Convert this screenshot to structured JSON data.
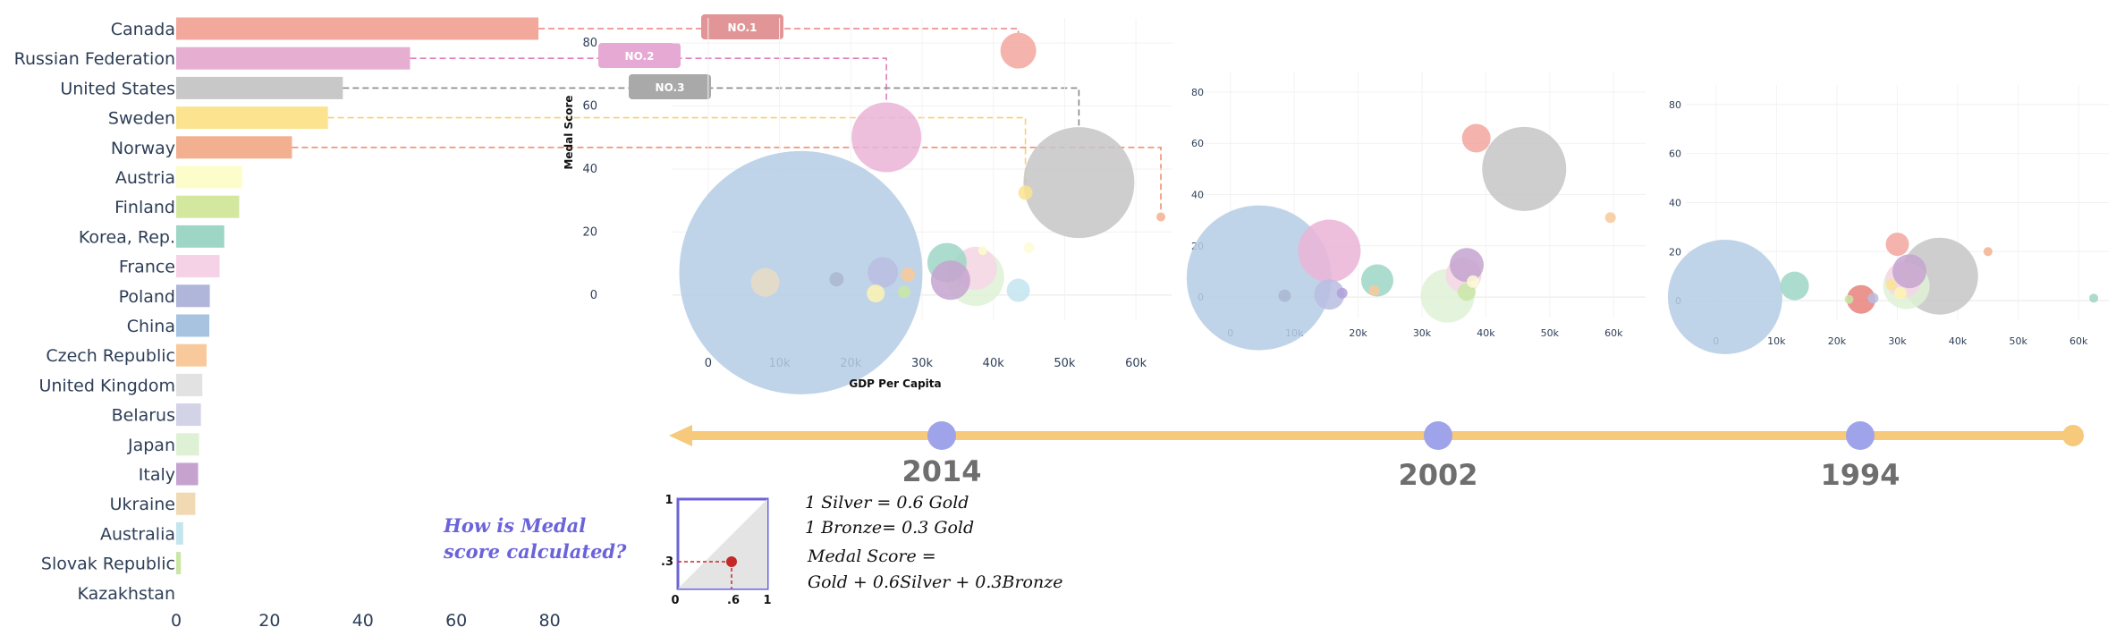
{
  "chart_data": [
    {
      "type": "bar",
      "orientation": "horizontal",
      "categories": [
        "Canada",
        "Russian Federation",
        "United States",
        "Sweden",
        "Norway",
        "Austria",
        "Finland",
        "Korea, Rep.",
        "France",
        "Poland",
        "China",
        "Czech Republic",
        "United Kingdom",
        "Belarus",
        "Japan",
        "Italy",
        "Ukraine",
        "Australia",
        "Slovak Republic",
        "Kazakhstan"
      ],
      "values": [
        77.6,
        50.1,
        35.7,
        32.5,
        24.8,
        14.1,
        13.5,
        10.3,
        9.3,
        7.2,
        7.1,
        6.5,
        5.6,
        5.3,
        4.9,
        4.7,
        4.1,
        1.5,
        1.0,
        0.3
      ],
      "colors": [
        "#f3a89c",
        "#e6afd2",
        "#c8c8c8",
        "#fbe38f",
        "#f2b091",
        "#fdfdcb",
        "#d3e79f",
        "#9ed6c6",
        "#f6d2e7",
        "#b0b5da",
        "#a7c3e0",
        "#f8c99a",
        "#e2e2e2",
        "#d3d3e8",
        "#dff1d5",
        "#c6a3cf",
        "#f0d9b3",
        "#c3e5ee",
        "#c9e6a5",
        "#ffffff"
      ],
      "xticks": [
        "0",
        "20",
        "40",
        "60",
        "80"
      ],
      "xlim": [
        0,
        90
      ],
      "badges": [
        "NO.1",
        "NO.2",
        "NO.3"
      ],
      "badge_colors": [
        "#e29596",
        "#e6a9d4",
        "#a9a9a9"
      ],
      "leader_colors": [
        "#f07f80",
        "#e07fba",
        "#888888",
        "#f7d070",
        "#f0906c"
      ]
    },
    {
      "type": "scatter",
      "year": "2014",
      "xlabel": "GDP Per Capita",
      "ylabel": "Medal Score",
      "xlim": [
        -5000,
        65000
      ],
      "ylim": [
        -8,
        88
      ],
      "xticks": [
        "0",
        "10k",
        "20k",
        "30k",
        "40k",
        "50k",
        "60k"
      ],
      "yticks": [
        "0",
        "20",
        "40",
        "60",
        "80"
      ],
      "points": [
        {
          "x": 43500,
          "y": 77.6,
          "size": 20,
          "color": "#f2a69d"
        },
        {
          "x": 25000,
          "y": 50.1,
          "size": 39,
          "color": "#eab4d7"
        },
        {
          "x": 52000,
          "y": 35.7,
          "size": 62,
          "color": "#c6c6c6"
        },
        {
          "x": 44500,
          "y": 32.5,
          "size": 8,
          "color": "#fbe38f"
        },
        {
          "x": 63500,
          "y": 24.8,
          "size": 5,
          "color": "#f2b091"
        },
        {
          "x": 13000,
          "y": 7.1,
          "size": 136,
          "color": "#b5cde5"
        },
        {
          "x": 8000,
          "y": 4.0,
          "size": 16,
          "color": "#e9dcc4"
        },
        {
          "x": 18000,
          "y": 5.0,
          "size": 8,
          "color": "#aab6d0"
        },
        {
          "x": 24500,
          "y": 7.2,
          "size": 17,
          "color": "#b9bde0"
        },
        {
          "x": 28000,
          "y": 6.5,
          "size": 8,
          "color": "#f8c99a"
        },
        {
          "x": 33500,
          "y": 10.3,
          "size": 22,
          "color": "#9ed6c6"
        },
        {
          "x": 34000,
          "y": 4.7,
          "size": 22,
          "color": "#c6a3cf"
        },
        {
          "x": 37500,
          "y": 8.5,
          "size": 24,
          "color": "#f7d6e8"
        },
        {
          "x": 37500,
          "y": 5.6,
          "size": 32,
          "color": "#dff1d5"
        },
        {
          "x": 38500,
          "y": 14.1,
          "size": 5,
          "color": "#fdfdcb"
        },
        {
          "x": 43500,
          "y": 1.5,
          "size": 13,
          "color": "#c3e5ee"
        },
        {
          "x": 45000,
          "y": 15.0,
          "size": 6,
          "color": "#fdfcd6"
        },
        {
          "x": 27500,
          "y": 1.0,
          "size": 7,
          "color": "#c9e6a5"
        },
        {
          "x": 23500,
          "y": 0.5,
          "size": 10,
          "color": "#fdf3b3"
        }
      ]
    },
    {
      "type": "scatter",
      "year": "2002",
      "xlim": [
        -5000,
        65000
      ],
      "ylim": [
        -8,
        88
      ],
      "xticks": [
        "0",
        "10k",
        "20k",
        "30k",
        "40k",
        "50k",
        "60k"
      ],
      "yticks": [
        "0",
        "20",
        "40",
        "60",
        "80"
      ],
      "points": [
        {
          "x": 38500,
          "y": 62,
          "size": 16,
          "color": "#f2a69d"
        },
        {
          "x": 46000,
          "y": 50,
          "size": 47,
          "color": "#c6c6c6"
        },
        {
          "x": 15500,
          "y": 18,
          "size": 35,
          "color": "#eab4d7"
        },
        {
          "x": 59500,
          "y": 31,
          "size": 6,
          "color": "#f8c99a"
        },
        {
          "x": 4500,
          "y": 7.5,
          "size": 81,
          "color": "#b5cde5"
        },
        {
          "x": 8500,
          "y": 0.5,
          "size": 7,
          "color": "#aab6d0"
        },
        {
          "x": 15500,
          "y": 1.0,
          "size": 17,
          "color": "#b9bde0"
        },
        {
          "x": 17500,
          "y": 1.5,
          "size": 6,
          "color": "#b0a0d8"
        },
        {
          "x": 22500,
          "y": 2.5,
          "size": 6,
          "color": "#f8c99a"
        },
        {
          "x": 23000,
          "y": 6.5,
          "size": 18,
          "color": "#9ed6c6"
        },
        {
          "x": 37000,
          "y": 12.5,
          "size": 19,
          "color": "#c6a3cf"
        },
        {
          "x": 36500,
          "y": 8.5,
          "size": 20,
          "color": "#f7d6e8"
        },
        {
          "x": 34000,
          "y": 0.5,
          "size": 30,
          "color": "#dff1d5"
        },
        {
          "x": 37000,
          "y": 2.0,
          "size": 10,
          "color": "#c9e6a5"
        },
        {
          "x": 38000,
          "y": 6.0,
          "size": 7,
          "color": "#fdfcd6"
        }
      ]
    },
    {
      "type": "scatter",
      "year": "1994",
      "xlim": [
        -5000,
        65000
      ],
      "ylim": [
        -8,
        88
      ],
      "xticks": [
        "0",
        "10k",
        "20k",
        "30k",
        "40k",
        "50k",
        "60k"
      ],
      "yticks": [
        "0",
        "20",
        "40",
        "60",
        "80"
      ],
      "points": [
        {
          "x": 1500,
          "y": 1.5,
          "size": 64,
          "color": "#b5cde5"
        },
        {
          "x": 13000,
          "y": 6.0,
          "size": 16,
          "color": "#9ed6c6"
        },
        {
          "x": 22000,
          "y": 0.5,
          "size": 5,
          "color": "#c9e6a5"
        },
        {
          "x": 24000,
          "y": 0.5,
          "size": 16,
          "color": "#e7817c"
        },
        {
          "x": 26000,
          "y": 1.0,
          "size": 6,
          "color": "#b9bde0"
        },
        {
          "x": 29000,
          "y": 6.5,
          "size": 6,
          "color": "#fbe38f"
        },
        {
          "x": 30000,
          "y": 23.0,
          "size": 13,
          "color": "#f2a69d"
        },
        {
          "x": 31000,
          "y": 8.5,
          "size": 20,
          "color": "#f7d6e8"
        },
        {
          "x": 32000,
          "y": 12.0,
          "size": 19,
          "color": "#c6a3cf"
        },
        {
          "x": 31500,
          "y": 6.0,
          "size": 26,
          "color": "#dff1d5"
        },
        {
          "x": 30500,
          "y": 3.0,
          "size": 7,
          "color": "#fdf3b3"
        },
        {
          "x": 37000,
          "y": 10.0,
          "size": 43,
          "color": "#c6c6c6"
        },
        {
          "x": 45000,
          "y": 20.0,
          "size": 5,
          "color": "#f2b091"
        },
        {
          "x": 62500,
          "y": 1.0,
          "size": 5,
          "color": "#9ed6c6"
        }
      ]
    }
  ],
  "timeline": {
    "years": [
      "2014",
      "2002",
      "1994"
    ],
    "line_color": "#f7c97a",
    "marker_color": "#9fa3ea"
  },
  "explainer": {
    "question_line1": "How is Medal",
    "question_line2": "score calculated?",
    "line1": "1 Silver = 0.6 Gold",
    "line2": "1 Bronze= 0.3 Gold",
    "line3": "Medal Score =",
    "line4": "Gold + 0.6Silver + 0.3Bronze",
    "diagram_ticks": {
      "y_top": "1",
      "y_mid": ".3",
      "origin": "0",
      "x_mid": ".6",
      "x_end": "1"
    },
    "accent_color": "#6b63d9",
    "marker_color": "#c62828"
  }
}
